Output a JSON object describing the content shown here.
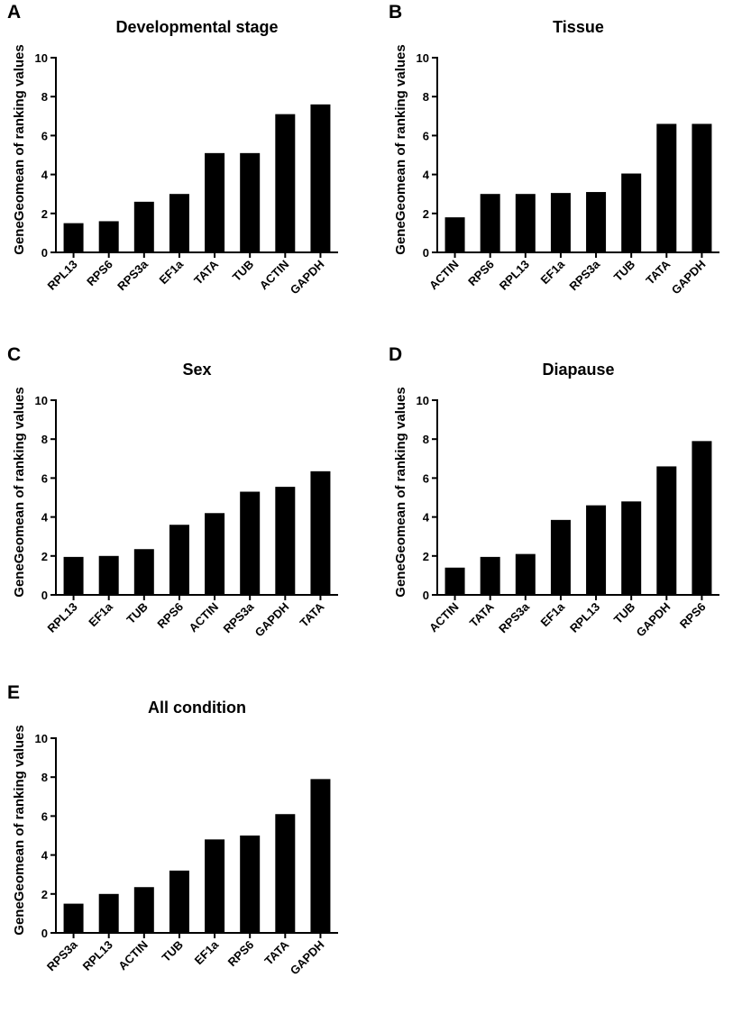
{
  "chart_data": [
    {
      "panel": "A",
      "type": "bar",
      "title": "Developmental stage",
      "xlabel": "",
      "ylabel": "GeneGeomean of ranking values",
      "ylim": [
        0,
        10
      ],
      "yticks": [
        "0",
        "2",
        "4",
        "6",
        "8",
        "10"
      ],
      "categories": [
        "RPL13",
        "RPS6",
        "RPS3a",
        "EF1a",
        "TATA",
        "TUB",
        "ACTIN",
        "GAPDH"
      ],
      "values": [
        1.5,
        1.6,
        2.6,
        3.0,
        5.1,
        5.1,
        7.1,
        7.6
      ]
    },
    {
      "panel": "B",
      "type": "bar",
      "title": "Tissue",
      "xlabel": "",
      "ylabel": "GeneGeomean of ranking values",
      "ylim": [
        0,
        10
      ],
      "yticks": [
        "0",
        "2",
        "4",
        "6",
        "8",
        "10"
      ],
      "categories": [
        "ACTIN",
        "RPS6",
        "RPL13",
        "EF1a",
        "RPS3a",
        "TUB",
        "TATA",
        "GAPDH"
      ],
      "values": [
        1.8,
        3.0,
        3.0,
        3.05,
        3.1,
        4.05,
        6.6,
        6.6
      ]
    },
    {
      "panel": "C",
      "type": "bar",
      "title": "Sex",
      "xlabel": "",
      "ylabel": "GeneGeomean of ranking values",
      "ylim": [
        0,
        10
      ],
      "yticks": [
        "0",
        "2",
        "4",
        "6",
        "8",
        "10"
      ],
      "categories": [
        "RPL13",
        "EF1a",
        "TUB",
        "RPS6",
        "ACTIN",
        "RPS3a",
        "GAPDH",
        "TATA"
      ],
      "values": [
        1.95,
        2.0,
        2.35,
        3.6,
        4.2,
        5.3,
        5.55,
        6.35
      ]
    },
    {
      "panel": "D",
      "type": "bar",
      "title": "Diapause",
      "xlabel": "",
      "ylabel": "GeneGeomean of ranking values",
      "ylim": [
        0,
        10
      ],
      "yticks": [
        "0",
        "2",
        "4",
        "6",
        "8",
        "10"
      ],
      "categories": [
        "ACTIN",
        "TATA",
        "RPS3a",
        "EF1a",
        "RPL13",
        "TUB",
        "GAPDH",
        "RPS6"
      ],
      "values": [
        1.4,
        1.95,
        2.1,
        3.85,
        4.6,
        4.8,
        6.6,
        7.9
      ]
    },
    {
      "panel": "E",
      "type": "bar",
      "title": "All condition",
      "xlabel": "",
      "ylabel": "GeneGeomean of ranking values",
      "ylim": [
        0,
        10
      ],
      "yticks": [
        "0",
        "2",
        "4",
        "6",
        "8",
        "10"
      ],
      "categories": [
        "RPS3a",
        "RPL13",
        "ACTIN",
        "TUB",
        "EF1a",
        "RPS6",
        "TATA",
        "GAPDH"
      ],
      "values": [
        1.5,
        2.0,
        2.35,
        3.2,
        4.8,
        5.0,
        6.1,
        7.9
      ]
    }
  ]
}
